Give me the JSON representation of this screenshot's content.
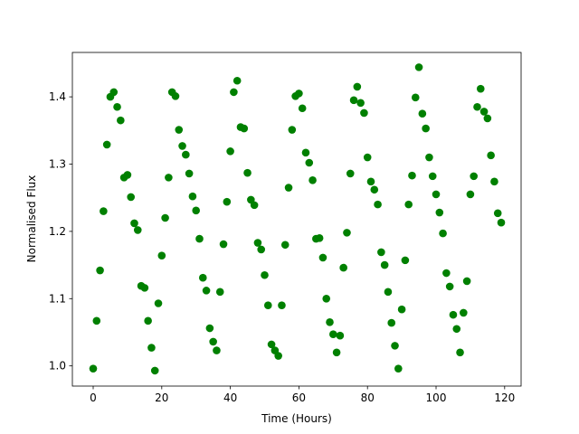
{
  "chart_data": {
    "type": "scatter",
    "x_label": "Time (Hours)",
    "y_label": "Normalised Flux",
    "color": "#008000",
    "x": [
      0,
      1,
      2,
      3,
      4,
      5,
      6,
      7,
      8,
      9,
      10,
      11,
      12,
      13,
      14,
      15,
      16,
      17,
      18,
      19,
      20,
      21,
      22,
      23,
      24,
      25,
      26,
      27,
      28,
      29,
      30,
      31,
      32,
      33,
      34,
      35,
      36,
      37,
      38,
      39,
      40,
      41,
      42,
      43,
      44,
      45,
      46,
      47,
      48,
      49,
      50,
      51,
      52,
      53,
      54,
      55,
      56,
      57,
      58,
      59,
      60,
      61,
      62,
      63,
      64,
      65,
      66,
      67,
      68,
      69,
      70,
      71,
      72,
      73,
      74,
      75,
      76,
      77,
      78,
      79,
      80,
      81,
      82,
      83,
      84,
      85,
      86,
      87,
      88,
      89,
      90,
      91,
      92,
      93,
      94,
      95,
      96,
      97,
      98,
      99,
      100,
      101,
      102,
      103,
      104,
      105,
      106,
      107,
      108,
      109,
      110,
      111,
      112,
      113,
      114,
      115,
      116,
      117,
      118,
      119
    ],
    "values": [
      0.996,
      1.067,
      1.142,
      1.23,
      1.329,
      1.4,
      1.407,
      1.385,
      1.365,
      1.28,
      1.284,
      1.251,
      1.212,
      1.202,
      1.119,
      1.116,
      1.067,
      1.027,
      0.993,
      1.093,
      1.164,
      1.22,
      1.28,
      1.407,
      1.401,
      1.351,
      1.327,
      1.314,
      1.286,
      1.252,
      1.231,
      1.189,
      1.131,
      1.112,
      1.056,
      1.036,
      1.023,
      1.11,
      1.181,
      1.244,
      1.319,
      1.407,
      1.424,
      1.355,
      1.353,
      1.287,
      1.247,
      1.239,
      1.183,
      1.173,
      1.135,
      1.09,
      1.032,
      1.023,
      1.015,
      1.09,
      1.18,
      1.265,
      1.351,
      1.401,
      1.405,
      1.383,
      1.317,
      1.302,
      1.276,
      1.189,
      1.19,
      1.161,
      1.1,
      1.065,
      1.047,
      1.02,
      1.045,
      1.146,
      1.198,
      1.286,
      1.395,
      1.415,
      1.391,
      1.376,
      1.31,
      1.274,
      1.262,
      1.24,
      1.169,
      1.15,
      1.11,
      1.064,
      1.03,
      0.996,
      1.084,
      1.157,
      1.24,
      1.283,
      1.399,
      1.444,
      1.375,
      1.353,
      1.31,
      1.282,
      1.255,
      1.228,
      1.197,
      1.138,
      1.118,
      1.076,
      1.055,
      1.02,
      1.079,
      1.126,
      1.255,
      1.282,
      1.385,
      1.412,
      1.378,
      1.368,
      1.313,
      1.274,
      1.227,
      1.213
    ],
    "xlim": [
      -6.07,
      124.8
    ],
    "ylim": [
      0.97,
      1.466
    ],
    "xticks": [
      0,
      20,
      40,
      60,
      80,
      100,
      120
    ],
    "yticks": [
      {
        "value": 1,
        "label": "1.0"
      },
      1.1,
      1.2,
      1.3,
      1.4
    ]
  }
}
